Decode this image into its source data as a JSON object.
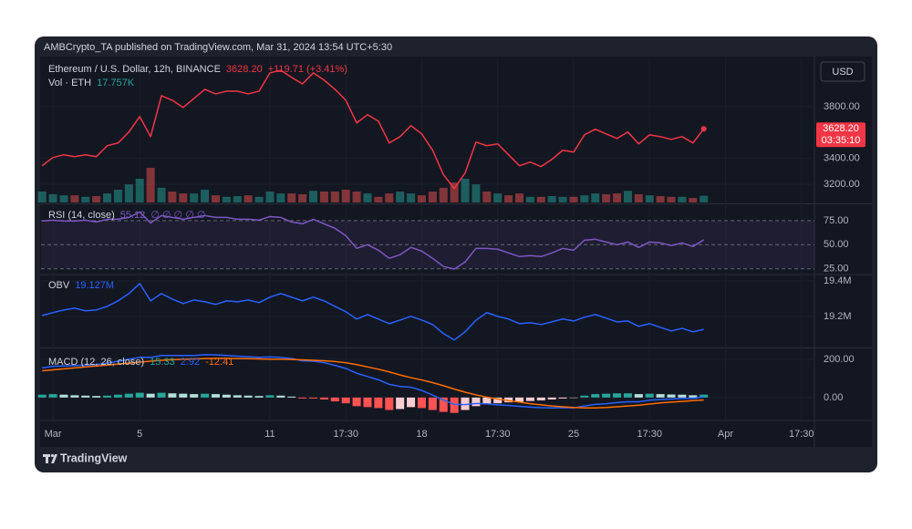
{
  "header": {
    "text": "AMBCrypto_TA published on TradingView.com, Mar 31, 2024 13:54 UTC+5:30"
  },
  "currency_button": "USD",
  "footer": {
    "brand": "TradingView"
  },
  "chart_data": {
    "type": "stock-panes",
    "grid": true,
    "x": [
      0.5,
      1,
      1.5,
      2,
      2.5,
      3,
      3.5,
      4,
      4.5,
      5,
      5.5,
      6,
      6.5,
      7,
      7.5,
      8,
      8.5,
      9,
      9.5,
      10,
      10.5,
      11,
      11.5,
      12,
      12.5,
      13,
      13.5,
      14,
      14.5,
      15,
      15.5,
      16,
      16.5,
      17,
      17.5,
      18,
      18.5,
      19,
      19.5,
      20,
      20.5,
      21,
      21.5,
      22,
      22.5,
      23,
      23.5,
      24,
      24.5,
      25,
      25.5,
      26,
      26.5,
      27,
      27.5,
      28,
      28.5,
      29,
      29.5,
      30,
      30.5,
      31
    ],
    "xlim": [
      0.45,
      36.1
    ],
    "xticks": [
      {
        "value": 1,
        "label": "Mar"
      },
      5,
      11,
      {
        "value": 14.5,
        "label": "17:30"
      },
      18,
      {
        "value": 21.5,
        "label": "17:30"
      },
      25,
      {
        "value": 28.5,
        "label": "17:30"
      },
      {
        "value": 32,
        "label": "Apr"
      },
      {
        "value": 35.5,
        "label": "17:30"
      }
    ],
    "panes": [
      {
        "type": "price",
        "title": "Ethereum / U.S. Dollar, 12h, BINANCE",
        "change": "+119.71 (+3.41%)",
        "countdown": "03:35:10",
        "ylim": [
          3060,
          4165
        ],
        "yticks": [
          {
            "value": 3800,
            "label": "3800.00"
          },
          {
            "value": 3400,
            "label": "3400.00"
          },
          {
            "value": 3200,
            "label": "3200.00"
          }
        ],
        "series": [
          {
            "type": "line",
            "color": "#f23645",
            "last_label": "3628.20",
            "values": [
              3344,
              3407,
              3428,
              3414,
              3428,
              3414,
              3498,
              3519,
              3604,
              3723,
              3568,
              3884,
              3849,
              3793,
              3863,
              3933,
              3898,
              3919,
              3919,
              3898,
              3919,
              4060,
              4081,
              4025,
              3975,
              4060,
              4004,
              3933,
              3849,
              3674,
              3737,
              3688,
              3519,
              3568,
              3653,
              3589,
              3463,
              3274,
              3168,
              3288,
              3526,
              3498,
              3512,
              3428,
              3344,
              3372,
              3337,
              3393,
              3463,
              3449,
              3582,
              3625,
              3589,
              3554,
              3604,
              3512,
              3582,
              3568,
              3547,
              3568,
              3519,
              3628.2
            ]
          },
          {
            "type": "volume",
            "name": "Vol · ETH",
            "last_label": "17.757K",
            "ylim": [
              0,
              380
            ],
            "up_color": "#26a69a",
            "down_color": "#ef5350",
            "values": [
              29,
              22,
              19,
              19,
              15,
              17,
              24,
              34,
              48,
              63,
              92,
              39,
              29,
              24,
              24,
              34,
              19,
              15,
              17,
              19,
              15,
              29,
              24,
              24,
              22,
              31,
              29,
              29,
              34,
              29,
              24,
              15,
              24,
              29,
              24,
              19,
              29,
              39,
              53,
              63,
              48,
              29,
              24,
              19,
              24,
              15,
              15,
              17,
              15,
              15,
              19,
              24,
              22,
              24,
              31,
              22,
              19,
              17,
              15,
              15,
              12,
              17.757
            ]
          }
        ]
      },
      {
        "type": "rsi",
        "hidden_values": "∅ ∅ ∅ ∅ ∅",
        "ylim": [
          20,
          91
        ],
        "yticks": [
          {
            "value": 75,
            "label": "75.00"
          },
          {
            "value": 50,
            "label": "50.00"
          },
          {
            "value": 25,
            "label": "25.00"
          }
        ],
        "band_color": "#7e57c2",
        "series": [
          {
            "type": "line",
            "name": "RSI (14, close)",
            "color": "#7e57c2",
            "values": [
              74.5,
              75.5,
              74.5,
              74.5,
              75.5,
              73.6,
              76.4,
              76.4,
              78.3,
              84.0,
              72.6,
              80.2,
              78.3,
              76.4,
              78.3,
              80.2,
              78.3,
              78.3,
              76.4,
              76.4,
              75.5,
              79.2,
              78.3,
              73.6,
              71.7,
              76.4,
              71.7,
              67.0,
              59.4,
              46.2,
              50.0,
              44.3,
              35.9,
              39.6,
              47.2,
              43.4,
              35.9,
              27.4,
              24.7,
              32.1,
              46.2,
              46.2,
              45.3,
              41.5,
              37.7,
              38.7,
              37.7,
              41.5,
              46.2,
              44.3,
              54.7,
              55.7,
              52.8,
              50.0,
              52.8,
              47.2,
              52.8,
              51.9,
              49.1,
              51.9,
              48.1,
              55.12
            ]
          }
        ]
      },
      {
        "type": "obv",
        "ylim": [
          19.03,
          19.43
        ],
        "yticks": [
          {
            "value": 19.4,
            "label": "19.4M"
          },
          {
            "value": 19.2,
            "label": "19.2M"
          }
        ],
        "series": [
          {
            "type": "line",
            "name": "OBV",
            "color": "#2962ff",
            "last_label": "19.127M",
            "values": [
              19.205,
              19.221,
              19.236,
              19.246,
              19.231,
              19.236,
              19.256,
              19.287,
              19.328,
              19.385,
              19.287,
              19.328,
              19.297,
              19.272,
              19.292,
              19.282,
              19.267,
              19.287,
              19.282,
              19.292,
              19.277,
              19.308,
              19.328,
              19.308,
              19.287,
              19.308,
              19.287,
              19.256,
              19.226,
              19.185,
              19.21,
              19.185,
              19.159,
              19.179,
              19.2,
              19.179,
              19.154,
              19.103,
              19.067,
              19.113,
              19.179,
              19.221,
              19.2,
              19.185,
              19.159,
              19.164,
              19.154,
              19.169,
              19.185,
              19.174,
              19.195,
              19.21,
              19.19,
              19.169,
              19.174,
              19.144,
              19.159,
              19.138,
              19.118,
              19.133,
              19.113,
              19.127
            ]
          }
        ]
      },
      {
        "type": "macd",
        "title": "MACD (12, 26, close)",
        "ylim": [
          -115,
          252
        ],
        "yticks": [
          {
            "value": 200,
            "label": "200.00"
          },
          {
            "value": 0,
            "label": "0.00"
          }
        ],
        "series": [
          {
            "type": "histogram",
            "colors": {
              "pos_up": "#26a69a",
              "pos_down": "#b2dfdb",
              "neg_down": "#ff5252",
              "neg_up": "#ffcdd2"
            },
            "values": [
              15,
              18,
              15,
              12,
              10,
              8,
              10,
              15,
              20,
              25,
              20,
              25,
              22,
              20,
              18,
              20,
              18,
              15,
              12,
              10,
              8,
              12,
              10,
              5,
              -5,
              -5,
              -10,
              -20,
              -30,
              -45,
              -50,
              -55,
              -65,
              -60,
              -50,
              -55,
              -65,
              -75,
              -80,
              -65,
              -45,
              -35,
              -30,
              -25,
              -22,
              -18,
              -15,
              -10,
              -5,
              -2,
              10,
              18,
              20,
              22,
              22,
              18,
              20,
              18,
              16,
              15,
              12,
              15.33
            ]
          },
          {
            "type": "line",
            "color": "#2962ff",
            "values": [
              155,
              163,
              165,
              167,
              170,
              173,
              180,
              190,
              200,
              210,
              210,
              220,
              220,
              220,
              220,
              224,
              223,
              220,
              216,
              213,
              210,
              212,
              210,
              204,
              192,
              190,
              182,
              168,
              152,
              127,
              110,
              93,
              69,
              58,
              54,
              37,
              13,
              -13,
              -36,
              -37,
              -31,
              -33,
              -38,
              -41,
              -46,
              -50,
              -53,
              -54,
              -53,
              -54,
              -44,
              -36,
              -32,
              -26,
              -22,
              -22,
              -14,
              -10,
              -8,
              -5,
              -4,
              2.92
            ]
          },
          {
            "type": "line",
            "color": "#ff6d00",
            "values": [
              140,
              145,
              150,
              155,
              160,
              165,
              170,
              175,
              180,
              185,
              190,
              195,
              198,
              200,
              202,
              204,
              205,
              205,
              204,
              203,
              202,
              200,
              200,
              199,
              197,
              195,
              192,
              188,
              182,
              172,
              160,
              148,
              134,
              118,
              104,
              92,
              78,
              62,
              44,
              28,
              14,
              2,
              -8,
              -16,
              -24,
              -32,
              -38,
              -44,
              -48,
              -52,
              -54,
              -54,
              -52,
              -48,
              -44,
              -40,
              -34,
              -28,
              -24,
              -20,
              -16,
              -12.41
            ]
          }
        ]
      }
    ]
  }
}
